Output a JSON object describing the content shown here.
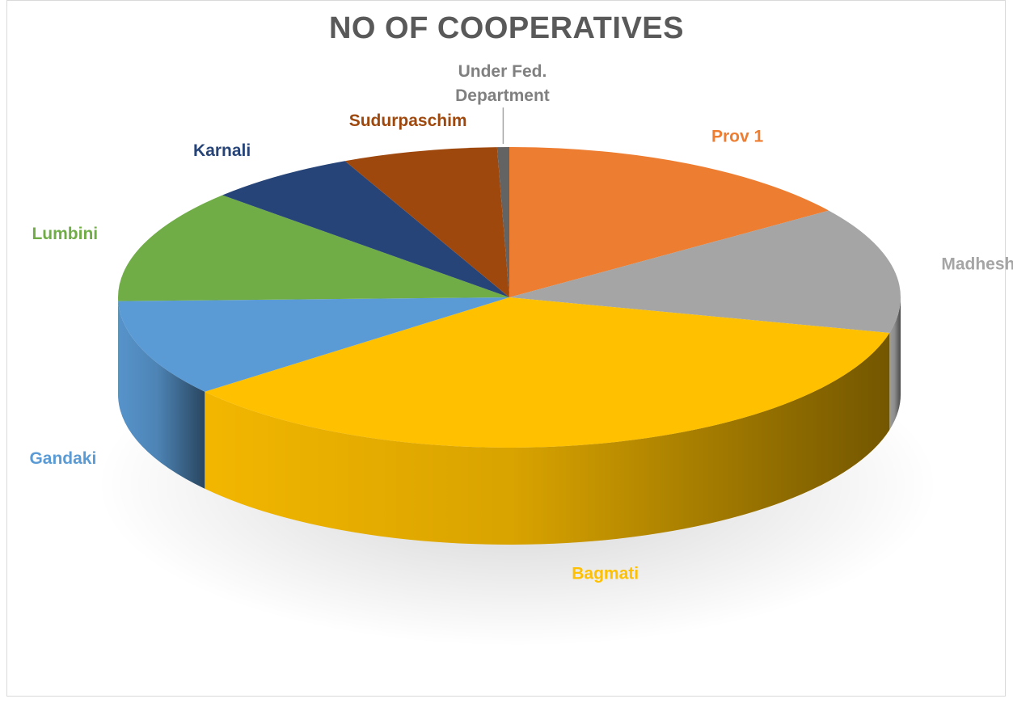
{
  "chart_data": {
    "type": "pie",
    "title": "NO OF COOPERATIVES",
    "three_d": true,
    "legend": "none",
    "categories": [
      "Prov 1",
      "Madhesh",
      "Bagmati",
      "Gandaki",
      "Lumbini",
      "Karnali",
      "Sudurpaschim",
      "Under Fed. Department"
    ],
    "values": [
      15.2,
      13.6,
      35.4,
      10.4,
      12.3,
      6.2,
      6.4,
      0.5
    ],
    "colors": [
      "#ED7D31",
      "#A5A5A5",
      "#FFC000",
      "#5B9BD5",
      "#70AD47",
      "#264478",
      "#9E480E",
      "#636363"
    ],
    "label_colors": [
      "#ED7D31",
      "#A5A5A5",
      "#FFC000",
      "#5B9BD5",
      "#70AD47",
      "#264478",
      "#9E480E",
      "#808080"
    ]
  }
}
